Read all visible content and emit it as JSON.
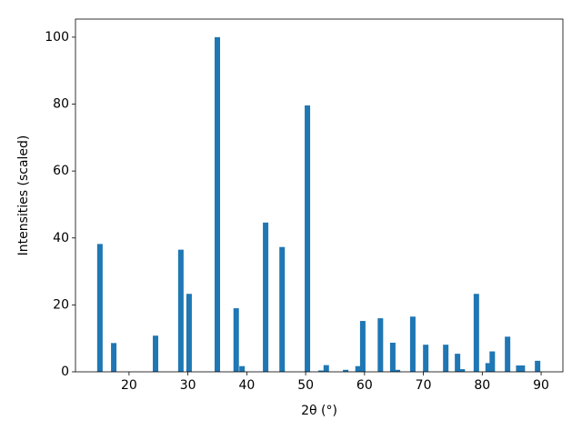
{
  "chart_data": {
    "type": "bar",
    "x_label": "2θ (°)",
    "y_label": "Intensities (scaled)",
    "color": "#1f77b4",
    "x": [
      15.05,
      17.4,
      24.5,
      28.8,
      30.2,
      35.0,
      38.2,
      39.2,
      43.2,
      46.0,
      50.3,
      52.6,
      53.5,
      56.8,
      58.9,
      59.7,
      62.7,
      64.8,
      65.6,
      68.2,
      70.4,
      73.8,
      75.8,
      76.6,
      79.0,
      81.0,
      81.7,
      84.3,
      86.2,
      86.8,
      89.4
    ],
    "values": [
      38.2,
      8.6,
      10.8,
      36.5,
      23.3,
      100,
      19,
      1.7,
      44.6,
      37.3,
      79.6,
      0.4,
      2,
      0.6,
      1.7,
      15.2,
      16,
      8.7,
      0.6,
      16.5,
      8.1,
      8.1,
      5.4,
      0.8,
      23.3,
      2.6,
      6.1,
      10.5,
      1.9,
      1.9,
      3.3
    ],
    "xlim": [
      10.9,
      93.7
    ],
    "ylim": [
      0,
      105.4
    ],
    "xticks": [
      20,
      30,
      40,
      50,
      60,
      70,
      80,
      90
    ],
    "yticks": [
      0,
      20,
      40,
      60,
      80,
      100
    ]
  }
}
